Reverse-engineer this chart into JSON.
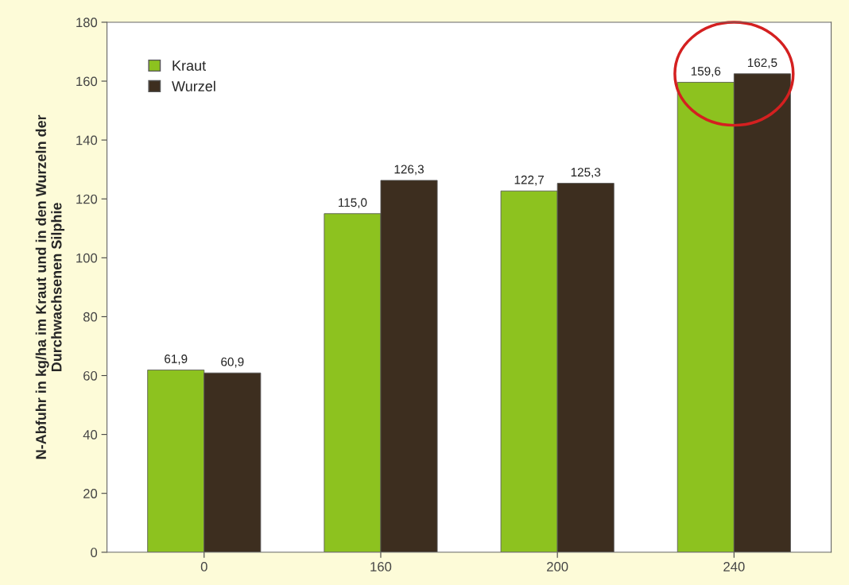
{
  "chart_data": {
    "type": "bar",
    "ylabel": "N-Abfuhr in kg/ha im Kraut und in den Wurzeln der\nDurchwachsenen Silphie",
    "categories": [
      "0",
      "160",
      "200",
      "240"
    ],
    "series": [
      {
        "name": "Kraut",
        "color": "#8dc21f",
        "values": [
          61.9,
          115.0,
          122.7,
          159.6
        ],
        "value_labels": [
          "61,9",
          "115,0",
          "122,7",
          "159,6"
        ]
      },
      {
        "name": "Wurzel",
        "color": "#3d2e1f",
        "values": [
          60.9,
          126.3,
          125.3,
          162.5
        ],
        "value_labels": [
          "60,9",
          "126,3",
          "125,3",
          "162,5"
        ]
      }
    ],
    "ylim": [
      0,
      180
    ],
    "yticks": [
      0,
      20,
      40,
      60,
      80,
      100,
      120,
      140,
      160,
      180
    ],
    "grid": false,
    "legend": "top left"
  }
}
